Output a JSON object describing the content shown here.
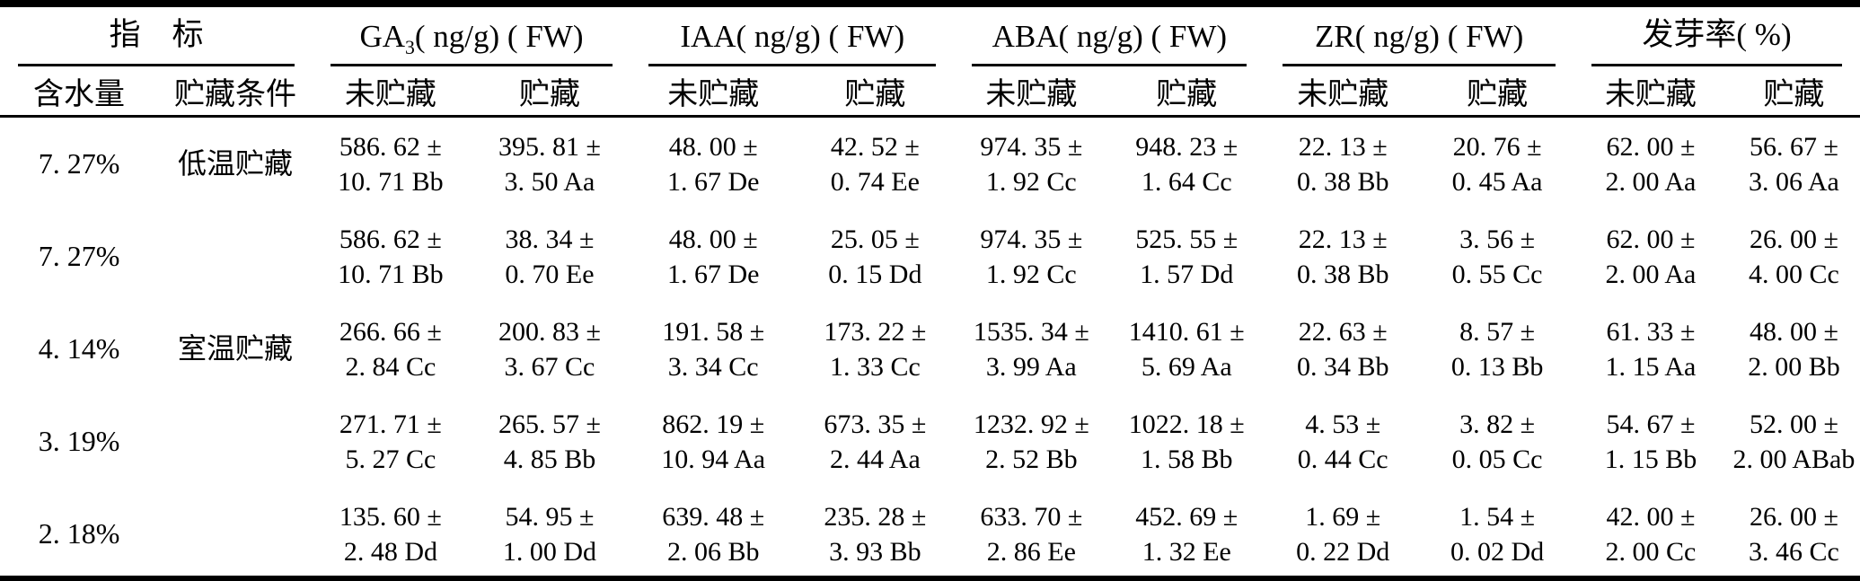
{
  "table": {
    "groups": [
      {
        "main": "指　标",
        "sub": "",
        "rest": "",
        "columns": [
          "含水量",
          "贮藏条件"
        ]
      },
      {
        "main": "GA",
        "sub": "3",
        "rest": "( ng/g) ( FW)",
        "columns": [
          "未贮藏",
          "贮藏"
        ]
      },
      {
        "main": "IAA( ng/g) ( FW)",
        "sub": "",
        "rest": "",
        "columns": [
          "未贮藏",
          "贮藏"
        ]
      },
      {
        "main": "ABA( ng/g) ( FW)",
        "sub": "",
        "rest": "",
        "columns": [
          "未贮藏",
          "贮藏"
        ]
      },
      {
        "main": "ZR( ng/g) ( FW)",
        "sub": "",
        "rest": "",
        "columns": [
          "未贮藏",
          "贮藏"
        ]
      },
      {
        "main": "发芽率( %)",
        "sub": "",
        "rest": "",
        "columns": [
          "未贮藏",
          "贮藏"
        ]
      }
    ],
    "rows": [
      {
        "moisture": "7. 27%",
        "condition": "低温贮藏",
        "cells": [
          [
            "586. 62 ±",
            "10. 71 Bb"
          ],
          [
            "395. 81 ±",
            "3. 50 Aa"
          ],
          [
            "48. 00 ±",
            "1. 67 De"
          ],
          [
            "42. 52 ±",
            "0. 74 Ee"
          ],
          [
            "974. 35 ±",
            "1. 92 Cc"
          ],
          [
            "948. 23 ±",
            "1. 64 Cc"
          ],
          [
            "22. 13 ±",
            "0. 38 Bb"
          ],
          [
            "20. 76 ±",
            "0. 45 Aa"
          ],
          [
            "62. 00 ±",
            "2. 00 Aa"
          ],
          [
            "56. 67 ±",
            "3. 06 Aa"
          ]
        ]
      },
      {
        "moisture": "7. 27%",
        "condition": "",
        "cells": [
          [
            "586. 62 ±",
            "10. 71 Bb"
          ],
          [
            "38. 34 ±",
            "0. 70 Ee"
          ],
          [
            "48. 00 ±",
            "1. 67 De"
          ],
          [
            "25. 05 ±",
            "0. 15 Dd"
          ],
          [
            "974. 35 ±",
            "1. 92 Cc"
          ],
          [
            "525. 55 ±",
            "1. 57 Dd"
          ],
          [
            "22. 13 ±",
            "0. 38 Bb"
          ],
          [
            "3. 56 ±",
            "0. 55 Cc"
          ],
          [
            "62. 00 ±",
            "2. 00 Aa"
          ],
          [
            "26. 00 ±",
            "4. 00 Cc"
          ]
        ]
      },
      {
        "moisture": "4. 14%",
        "condition": "室温贮藏",
        "cells": [
          [
            "266. 66 ±",
            "2. 84 Cc"
          ],
          [
            "200. 83 ±",
            "3. 67 Cc"
          ],
          [
            "191. 58 ±",
            "3. 34 Cc"
          ],
          [
            "173. 22 ±",
            "1. 33 Cc"
          ],
          [
            "1535. 34 ±",
            "3. 99 Aa"
          ],
          [
            "1410. 61 ±",
            "5. 69 Aa"
          ],
          [
            "22. 63 ±",
            "0. 34 Bb"
          ],
          [
            "8. 57 ±",
            "0. 13 Bb"
          ],
          [
            "61. 33 ±",
            "1. 15 Aa"
          ],
          [
            "48. 00 ±",
            "2. 00 Bb"
          ]
        ]
      },
      {
        "moisture": "3. 19%",
        "condition": "",
        "cells": [
          [
            "271. 71 ±",
            "5. 27 Cc"
          ],
          [
            "265. 57 ±",
            "4. 85 Bb"
          ],
          [
            "862. 19 ±",
            "10. 94 Aa"
          ],
          [
            "673. 35 ±",
            "2. 44 Aa"
          ],
          [
            "1232. 92 ±",
            "2. 52 Bb"
          ],
          [
            "1022. 18 ±",
            "1. 58 Bb"
          ],
          [
            "4. 53 ±",
            "0. 44 Cc"
          ],
          [
            "3. 82 ±",
            "0. 05 Cc"
          ],
          [
            "54. 67 ±",
            "1. 15 Bb"
          ],
          [
            "52. 00 ±",
            "2. 00 ABab"
          ]
        ]
      },
      {
        "moisture": "2. 18%",
        "condition": "",
        "cells": [
          [
            "135. 60 ±",
            "2. 48 Dd"
          ],
          [
            "54. 95 ±",
            "1. 00 Dd"
          ],
          [
            "639. 48 ±",
            "2. 06 Bb"
          ],
          [
            "235. 28 ±",
            "3. 93 Bb"
          ],
          [
            "633. 70 ±",
            "2. 86 Ee"
          ],
          [
            "452. 69 ±",
            "1. 32 Ee"
          ],
          [
            "1. 69 ±",
            "0. 22 Dd"
          ],
          [
            "1. 54 ±",
            "0. 02 Dd"
          ],
          [
            "42. 00 ±",
            "2. 00 Cc"
          ],
          [
            "26. 00 ±",
            "3. 46 Cc"
          ]
        ]
      }
    ]
  }
}
